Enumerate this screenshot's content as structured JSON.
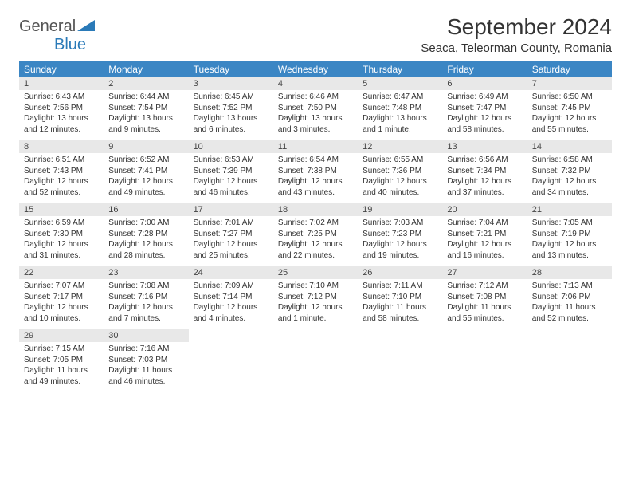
{
  "logo": {
    "main": "General",
    "sub": "Blue"
  },
  "header": {
    "month_title": "September 2024",
    "location": "Seaca, Teleorman County, Romania"
  },
  "colors": {
    "header_bg": "#3b86c4",
    "header_text": "#ffffff",
    "daynum_bg": "#e8e8e8",
    "week_border": "#3b86c4",
    "logo_blue": "#2a7ab8"
  },
  "day_names": [
    "Sunday",
    "Monday",
    "Tuesday",
    "Wednesday",
    "Thursday",
    "Friday",
    "Saturday"
  ],
  "days": [
    {
      "n": 1,
      "sunrise": "6:43 AM",
      "sunset": "7:56 PM",
      "daylight": "13 hours and 12 minutes."
    },
    {
      "n": 2,
      "sunrise": "6:44 AM",
      "sunset": "7:54 PM",
      "daylight": "13 hours and 9 minutes."
    },
    {
      "n": 3,
      "sunrise": "6:45 AM",
      "sunset": "7:52 PM",
      "daylight": "13 hours and 6 minutes."
    },
    {
      "n": 4,
      "sunrise": "6:46 AM",
      "sunset": "7:50 PM",
      "daylight": "13 hours and 3 minutes."
    },
    {
      "n": 5,
      "sunrise": "6:47 AM",
      "sunset": "7:48 PM",
      "daylight": "13 hours and 1 minute."
    },
    {
      "n": 6,
      "sunrise": "6:49 AM",
      "sunset": "7:47 PM",
      "daylight": "12 hours and 58 minutes."
    },
    {
      "n": 7,
      "sunrise": "6:50 AM",
      "sunset": "7:45 PM",
      "daylight": "12 hours and 55 minutes."
    },
    {
      "n": 8,
      "sunrise": "6:51 AM",
      "sunset": "7:43 PM",
      "daylight": "12 hours and 52 minutes."
    },
    {
      "n": 9,
      "sunrise": "6:52 AM",
      "sunset": "7:41 PM",
      "daylight": "12 hours and 49 minutes."
    },
    {
      "n": 10,
      "sunrise": "6:53 AM",
      "sunset": "7:39 PM",
      "daylight": "12 hours and 46 minutes."
    },
    {
      "n": 11,
      "sunrise": "6:54 AM",
      "sunset": "7:38 PM",
      "daylight": "12 hours and 43 minutes."
    },
    {
      "n": 12,
      "sunrise": "6:55 AM",
      "sunset": "7:36 PM",
      "daylight": "12 hours and 40 minutes."
    },
    {
      "n": 13,
      "sunrise": "6:56 AM",
      "sunset": "7:34 PM",
      "daylight": "12 hours and 37 minutes."
    },
    {
      "n": 14,
      "sunrise": "6:58 AM",
      "sunset": "7:32 PM",
      "daylight": "12 hours and 34 minutes."
    },
    {
      "n": 15,
      "sunrise": "6:59 AM",
      "sunset": "7:30 PM",
      "daylight": "12 hours and 31 minutes."
    },
    {
      "n": 16,
      "sunrise": "7:00 AM",
      "sunset": "7:28 PM",
      "daylight": "12 hours and 28 minutes."
    },
    {
      "n": 17,
      "sunrise": "7:01 AM",
      "sunset": "7:27 PM",
      "daylight": "12 hours and 25 minutes."
    },
    {
      "n": 18,
      "sunrise": "7:02 AM",
      "sunset": "7:25 PM",
      "daylight": "12 hours and 22 minutes."
    },
    {
      "n": 19,
      "sunrise": "7:03 AM",
      "sunset": "7:23 PM",
      "daylight": "12 hours and 19 minutes."
    },
    {
      "n": 20,
      "sunrise": "7:04 AM",
      "sunset": "7:21 PM",
      "daylight": "12 hours and 16 minutes."
    },
    {
      "n": 21,
      "sunrise": "7:05 AM",
      "sunset": "7:19 PM",
      "daylight": "12 hours and 13 minutes."
    },
    {
      "n": 22,
      "sunrise": "7:07 AM",
      "sunset": "7:17 PM",
      "daylight": "12 hours and 10 minutes."
    },
    {
      "n": 23,
      "sunrise": "7:08 AM",
      "sunset": "7:16 PM",
      "daylight": "12 hours and 7 minutes."
    },
    {
      "n": 24,
      "sunrise": "7:09 AM",
      "sunset": "7:14 PM",
      "daylight": "12 hours and 4 minutes."
    },
    {
      "n": 25,
      "sunrise": "7:10 AM",
      "sunset": "7:12 PM",
      "daylight": "12 hours and 1 minute."
    },
    {
      "n": 26,
      "sunrise": "7:11 AM",
      "sunset": "7:10 PM",
      "daylight": "11 hours and 58 minutes."
    },
    {
      "n": 27,
      "sunrise": "7:12 AM",
      "sunset": "7:08 PM",
      "daylight": "11 hours and 55 minutes."
    },
    {
      "n": 28,
      "sunrise": "7:13 AM",
      "sunset": "7:06 PM",
      "daylight": "11 hours and 52 minutes."
    },
    {
      "n": 29,
      "sunrise": "7:15 AM",
      "sunset": "7:05 PM",
      "daylight": "11 hours and 49 minutes."
    },
    {
      "n": 30,
      "sunrise": "7:16 AM",
      "sunset": "7:03 PM",
      "daylight": "11 hours and 46 minutes."
    }
  ],
  "labels": {
    "sunrise": "Sunrise:",
    "sunset": "Sunset:",
    "daylight": "Daylight:"
  }
}
